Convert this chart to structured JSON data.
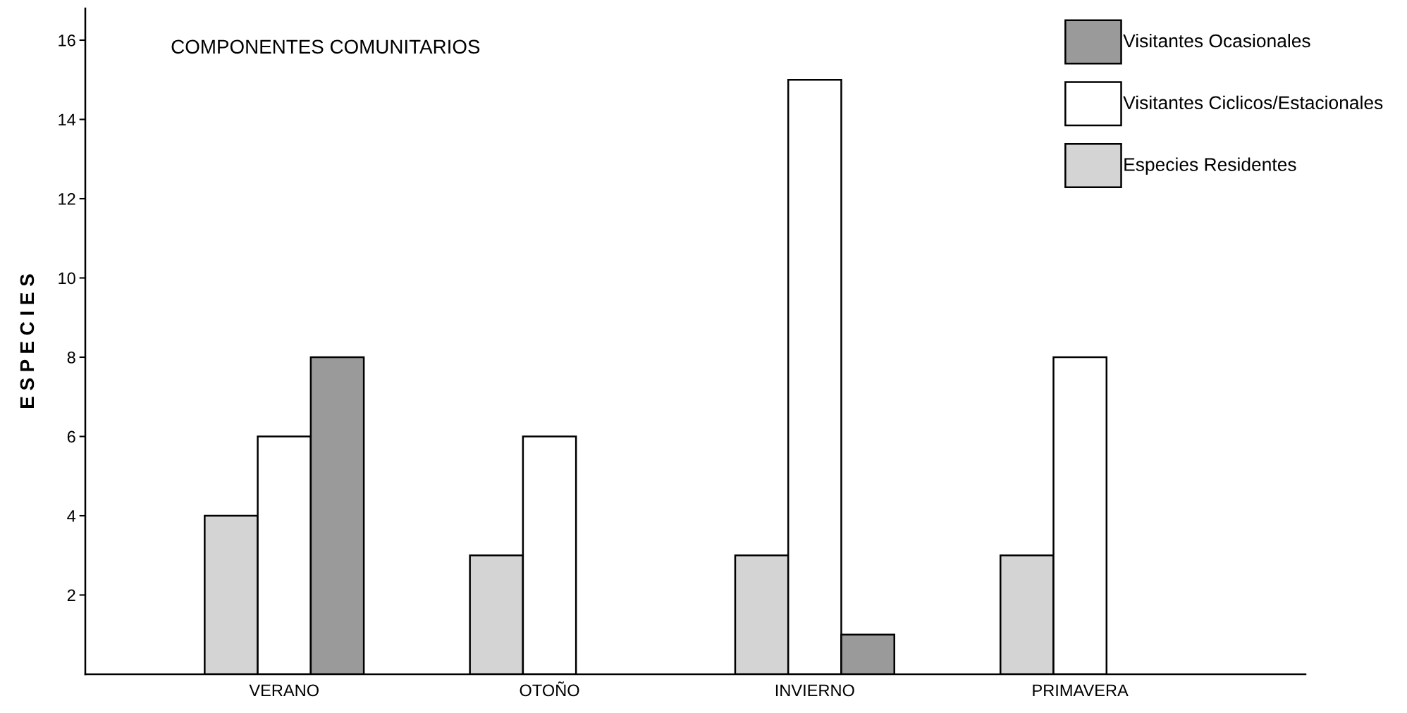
{
  "chart_data": {
    "type": "bar",
    "title": "COMPONENTES COMUNITARIOS",
    "ylabel": "E S P E C I E S",
    "categories": [
      "VERANO",
      "OTOÑO",
      "INVIERNO",
      "PRIMAVERA"
    ],
    "series": [
      {
        "name": "Especies Residentes",
        "color": "#d4d4d4",
        "values": [
          4,
          3,
          3,
          3
        ]
      },
      {
        "name": "Visitantes Ciclicos/Estacionales",
        "color": "#ffffff",
        "values": [
          6,
          6,
          15,
          8
        ]
      },
      {
        "name": "Visitantes Ocasionales",
        "color": "#9a9a9a",
        "values": [
          8,
          null,
          1,
          null
        ]
      }
    ],
    "ylim": [
      0,
      16.8
    ],
    "yticks": [
      2,
      4,
      6,
      8,
      10,
      12,
      14,
      16
    ],
    "grid": false,
    "legend": "top right"
  }
}
